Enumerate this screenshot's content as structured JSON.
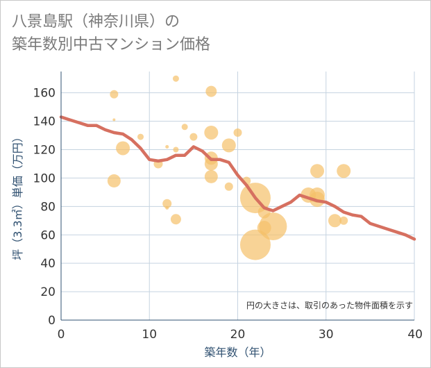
{
  "title_line1": "八景島駅（神奈川県）の",
  "title_line2": "築年数別中古マンション価格",
  "chart_data": {
    "type": "scatter",
    "xlabel": "築年数（年）",
    "ylabel": "坪（3.3㎡）単価（万円）",
    "xlim": [
      0,
      40
    ],
    "ylim": [
      0,
      175
    ],
    "xticks": [
      "0",
      "10",
      "20",
      "30",
      "40"
    ],
    "yticks": [
      "0",
      "20",
      "40",
      "60",
      "80",
      "100",
      "120",
      "140",
      "160"
    ],
    "note": "円の大きさは、取引のあった物件面積を示す",
    "grid": true,
    "colors": {
      "bubble": "#f5c06a",
      "line": "#d67060",
      "grid": "#c5d3e0",
      "axis": "#2f5070"
    },
    "bubbles": [
      {
        "x": 6,
        "y": 159,
        "size": 12
      },
      {
        "x": 6,
        "y": 141,
        "size": 4
      },
      {
        "x": 6,
        "y": 98,
        "size": 19
      },
      {
        "x": 7,
        "y": 121,
        "size": 20
      },
      {
        "x": 9,
        "y": 129,
        "size": 9
      },
      {
        "x": 11,
        "y": 110,
        "size": 13
      },
      {
        "x": 12,
        "y": 122,
        "size": 5
      },
      {
        "x": 12,
        "y": 82,
        "size": 13
      },
      {
        "x": 12,
        "y": 79,
        "size": 5
      },
      {
        "x": 13,
        "y": 170,
        "size": 9
      },
      {
        "x": 13,
        "y": 120,
        "size": 8
      },
      {
        "x": 13,
        "y": 71,
        "size": 15
      },
      {
        "x": 14,
        "y": 136,
        "size": 9
      },
      {
        "x": 15,
        "y": 129,
        "size": 11
      },
      {
        "x": 17,
        "y": 161,
        "size": 16
      },
      {
        "x": 17,
        "y": 132,
        "size": 20
      },
      {
        "x": 17,
        "y": 114,
        "size": 19
      },
      {
        "x": 17,
        "y": 110,
        "size": 19
      },
      {
        "x": 17,
        "y": 101,
        "size": 19
      },
      {
        "x": 19,
        "y": 123,
        "size": 20
      },
      {
        "x": 19,
        "y": 94,
        "size": 12
      },
      {
        "x": 20,
        "y": 132,
        "size": 12
      },
      {
        "x": 21,
        "y": 98,
        "size": 12
      },
      {
        "x": 22,
        "y": 86,
        "size": 44
      },
      {
        "x": 22,
        "y": 53,
        "size": 44
      },
      {
        "x": 23,
        "y": 76,
        "size": 18
      },
      {
        "x": 23,
        "y": 65,
        "size": 20
      },
      {
        "x": 24,
        "y": 66,
        "size": 40
      },
      {
        "x": 28,
        "y": 88,
        "size": 22
      },
      {
        "x": 29,
        "y": 105,
        "size": 20
      },
      {
        "x": 29,
        "y": 88,
        "size": 22
      },
      {
        "x": 29,
        "y": 85,
        "size": 22
      },
      {
        "x": 31,
        "y": 70,
        "size": 19
      },
      {
        "x": 32,
        "y": 70,
        "size": 12
      },
      {
        "x": 32,
        "y": 105,
        "size": 20
      }
    ],
    "trend": {
      "x": [
        0,
        1,
        2,
        3,
        4,
        5,
        6,
        7,
        8,
        9,
        10,
        11,
        12,
        13,
        14,
        15,
        16,
        17,
        18,
        19,
        20,
        21,
        22,
        23,
        24,
        25,
        26,
        27,
        28,
        29,
        30,
        31,
        32,
        33,
        34,
        35,
        36,
        37,
        38,
        39,
        40
      ],
      "y": [
        143,
        141,
        139,
        137,
        137,
        134,
        132,
        131,
        127,
        121,
        113,
        112,
        113,
        116,
        116,
        122,
        119,
        113,
        113,
        111,
        102,
        95,
        86,
        79,
        77,
        80,
        83,
        88,
        86,
        84,
        83,
        80,
        76,
        74,
        73,
        68,
        66,
        64,
        62,
        60,
        57
      ]
    }
  }
}
